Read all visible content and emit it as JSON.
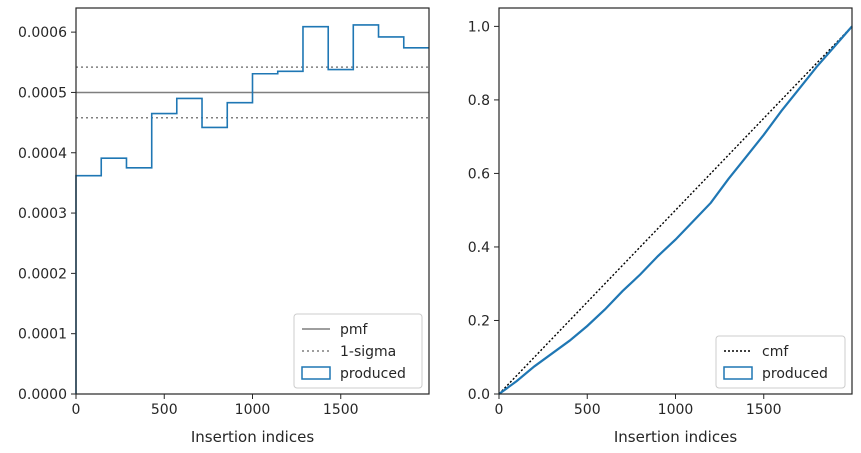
{
  "chart_data": [
    {
      "type": "line",
      "xlabel": "Insertion indices",
      "ylabel": "",
      "xlim": [
        0,
        2000
      ],
      "ylim": [
        0,
        0.00064
      ],
      "xticks": [
        "0",
        "500",
        "1000",
        "1500"
      ],
      "xtick_values": [
        0,
        500,
        1000,
        1500
      ],
      "yticks": [
        "0.0000",
        "0.0001",
        "0.0002",
        "0.0003",
        "0.0004",
        "0.0005",
        "0.0006"
      ],
      "ytick_values": [
        0,
        0.0001,
        0.0002,
        0.0003,
        0.0004,
        0.0005,
        0.0006
      ],
      "grid": false,
      "legend_position": "bottom-right",
      "series": [
        {
          "name": "pmf",
          "style": "solid",
          "color": "#7f7f7f",
          "x": [
            0,
            2000
          ],
          "y": [
            0.0005,
            0.0005
          ]
        },
        {
          "name": "1-sigma",
          "style": "dotted",
          "color": "#7f7f7f",
          "x": [
            0,
            2000
          ],
          "y": [
            0.000542,
            0.000542
          ],
          "y2": [
            0.000458,
            0.000458
          ]
        },
        {
          "name": "produced",
          "style": "step",
          "color": "#1f77b4",
          "bin_edges": [
            0,
            143,
            286,
            429,
            571,
            714,
            857,
            1000,
            1143,
            1286,
            1429,
            1571,
            1714,
            1857,
            2000
          ],
          "values": [
            0.000362,
            0.000391,
            0.000375,
            0.000465,
            0.00049,
            0.000442,
            0.000483,
            0.000531,
            0.000535,
            0.000609,
            0.000538,
            0.000612,
            0.000592,
            0.000574
          ]
        }
      ]
    },
    {
      "type": "line",
      "xlabel": "Insertion indices",
      "ylabel": "",
      "xlim": [
        0,
        2000
      ],
      "ylim": [
        0,
        1.05
      ],
      "xticks": [
        "0",
        "500",
        "1000",
        "1500"
      ],
      "xtick_values": [
        0,
        500,
        1000,
        1500
      ],
      "yticks": [
        "0.0",
        "0.2",
        "0.4",
        "0.6",
        "0.8",
        "1.0"
      ],
      "ytick_values": [
        0,
        0.2,
        0.4,
        0.6,
        0.8,
        1.0
      ],
      "grid": false,
      "legend_position": "bottom-right",
      "series": [
        {
          "name": "cmf",
          "style": "dotted",
          "color": "#000000",
          "x": [
            0,
            2000
          ],
          "y": [
            0,
            1
          ]
        },
        {
          "name": "produced",
          "style": "solid",
          "color": "#1f77b4",
          "x": [
            0,
            100,
            200,
            300,
            400,
            500,
            600,
            700,
            800,
            900,
            1000,
            1100,
            1200,
            1300,
            1400,
            1500,
            1600,
            1700,
            1800,
            1900,
            2000
          ],
          "y": [
            0,
            0.035,
            0.075,
            0.11,
            0.145,
            0.185,
            0.23,
            0.28,
            0.325,
            0.375,
            0.42,
            0.47,
            0.52,
            0.585,
            0.645,
            0.705,
            0.77,
            0.83,
            0.89,
            0.945,
            1.0
          ]
        }
      ]
    }
  ]
}
